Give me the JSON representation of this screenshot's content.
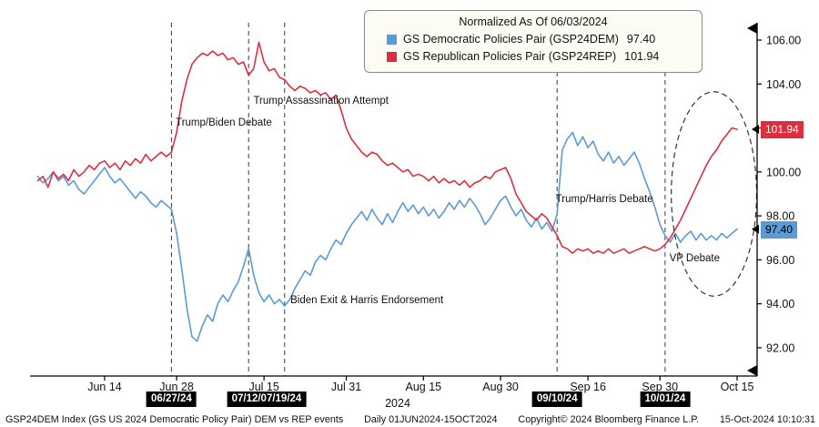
{
  "chart_data": {
    "type": "line",
    "title": "Normalized As Of 06/03/2024",
    "x_unit": "days since 01 Jun 2024",
    "x_range_days": [
      0,
      136
    ],
    "ylim": [
      91.0,
      107.0
    ],
    "grid": false,
    "legend_position": "top-center",
    "year_label": "2024",
    "y_ticks": [
      {
        "label": "92.00",
        "value": 92
      },
      {
        "label": "94.00",
        "value": 94
      },
      {
        "label": "96.00",
        "value": 96
      },
      {
        "label": "98.00",
        "value": 98
      },
      {
        "label": "100.00",
        "value": 100
      },
      {
        "label": "102.00",
        "value": 102
      },
      {
        "label": "104.00",
        "value": 104
      },
      {
        "label": "106.00",
        "value": 106
      }
    ],
    "x_ticks": [
      {
        "label": "Jun 14",
        "day": 13
      },
      {
        "label": "Jun 28",
        "day": 27
      },
      {
        "label": "Jul 15",
        "day": 44
      },
      {
        "label": "Jul 31",
        "day": 60
      },
      {
        "label": "Aug 15",
        "day": 75
      },
      {
        "label": "Aug 30",
        "day": 90
      },
      {
        "label": "Sep 16",
        "day": 107
      },
      {
        "label": "Sep 30",
        "day": 121
      },
      {
        "label": "Oct 15",
        "day": 136
      }
    ],
    "series": [
      {
        "name": "GS Democratic Policies Pair (GSP24DEM)",
        "ticker": "GSP24DEM",
        "color": "#5a9ad5",
        "last_value": "97.40",
        "points": [
          [
            0,
            99.8
          ],
          [
            1,
            99.5
          ],
          [
            2,
            99.7
          ],
          [
            3,
            100.0
          ],
          [
            4,
            99.6
          ],
          [
            5,
            99.8
          ],
          [
            6,
            99.4
          ],
          [
            7,
            99.6
          ],
          [
            8,
            99.2
          ],
          [
            9,
            99.0
          ],
          [
            10,
            99.3
          ],
          [
            11,
            99.6
          ],
          [
            12,
            99.9
          ],
          [
            13,
            100.2
          ],
          [
            14,
            99.8
          ],
          [
            15,
            99.5
          ],
          [
            16,
            99.7
          ],
          [
            17,
            99.4
          ],
          [
            18,
            99.1
          ],
          [
            19,
            98.8
          ],
          [
            20,
            99.1
          ],
          [
            21,
            98.9
          ],
          [
            22,
            98.6
          ],
          [
            23,
            98.4
          ],
          [
            24,
            98.7
          ],
          [
            25,
            98.5
          ],
          [
            26,
            98.3
          ],
          [
            27,
            97.2
          ],
          [
            28,
            95.6
          ],
          [
            29,
            93.8
          ],
          [
            30,
            92.5
          ],
          [
            31,
            92.3
          ],
          [
            32,
            93.0
          ],
          [
            33,
            93.5
          ],
          [
            34,
            93.2
          ],
          [
            35,
            94.0
          ],
          [
            36,
            94.4
          ],
          [
            37,
            94.1
          ],
          [
            38,
            94.6
          ],
          [
            39,
            95.0
          ],
          [
            40,
            95.7
          ],
          [
            41,
            96.5
          ],
          [
            42,
            95.3
          ],
          [
            43,
            94.5
          ],
          [
            44,
            94.1
          ],
          [
            45,
            94.4
          ],
          [
            46,
            94.0
          ],
          [
            47,
            94.2
          ],
          [
            48,
            93.9
          ],
          [
            49,
            94.2
          ],
          [
            50,
            94.7
          ],
          [
            51,
            95.1
          ],
          [
            52,
            95.5
          ],
          [
            53,
            95.3
          ],
          [
            54,
            95.9
          ],
          [
            55,
            96.2
          ],
          [
            56,
            96.0
          ],
          [
            57,
            96.5
          ],
          [
            58,
            96.9
          ],
          [
            59,
            96.7
          ],
          [
            60,
            97.2
          ],
          [
            61,
            97.6
          ],
          [
            62,
            97.9
          ],
          [
            63,
            98.2
          ],
          [
            64,
            97.8
          ],
          [
            65,
            98.3
          ],
          [
            66,
            97.9
          ],
          [
            67,
            97.6
          ],
          [
            68,
            98.1
          ],
          [
            69,
            97.7
          ],
          [
            70,
            98.2
          ],
          [
            71,
            98.6
          ],
          [
            72,
            98.2
          ],
          [
            73,
            98.5
          ],
          [
            74,
            98.1
          ],
          [
            75,
            98.4
          ],
          [
            76,
            98.0
          ],
          [
            77,
            98.3
          ],
          [
            78,
            97.9
          ],
          [
            79,
            98.2
          ],
          [
            80,
            98.6
          ],
          [
            81,
            98.3
          ],
          [
            82,
            98.7
          ],
          [
            83,
            98.4
          ],
          [
            84,
            98.8
          ],
          [
            85,
            98.5
          ],
          [
            86,
            98.1
          ],
          [
            87,
            97.6
          ],
          [
            88,
            97.9
          ],
          [
            89,
            98.3
          ],
          [
            90,
            98.7
          ],
          [
            91,
            98.9
          ],
          [
            92,
            98.4
          ],
          [
            93,
            98.0
          ],
          [
            94,
            98.3
          ],
          [
            95,
            97.8
          ],
          [
            96,
            97.5
          ],
          [
            97,
            97.9
          ],
          [
            98,
            97.4
          ],
          [
            99,
            97.7
          ],
          [
            100,
            97.3
          ],
          [
            101,
            98.1
          ],
          [
            102,
            101.0
          ],
          [
            103,
            101.5
          ],
          [
            104,
            101.8
          ],
          [
            105,
            101.2
          ],
          [
            106,
            101.6
          ],
          [
            107,
            101.1
          ],
          [
            108,
            101.4
          ],
          [
            109,
            100.8
          ],
          [
            110,
            100.5
          ],
          [
            111,
            100.9
          ],
          [
            112,
            100.4
          ],
          [
            113,
            100.7
          ],
          [
            114,
            100.3
          ],
          [
            115,
            100.6
          ],
          [
            116,
            100.9
          ],
          [
            117,
            100.4
          ],
          [
            118,
            99.7
          ],
          [
            119,
            99.1
          ],
          [
            120,
            98.4
          ],
          [
            121,
            97.6
          ],
          [
            122,
            97.1
          ],
          [
            123,
            96.8
          ],
          [
            124,
            97.2
          ],
          [
            125,
            96.8
          ],
          [
            126,
            97.1
          ],
          [
            127,
            97.3
          ],
          [
            128,
            96.9
          ],
          [
            129,
            97.2
          ],
          [
            130,
            96.9
          ],
          [
            131,
            97.1
          ],
          [
            132,
            96.9
          ],
          [
            133,
            97.2
          ],
          [
            134,
            97.0
          ],
          [
            135,
            97.2
          ],
          [
            136,
            97.4
          ]
        ]
      },
      {
        "name": "GS Republican Policies Pair (GSP24REP)",
        "ticker": "GSP24REP",
        "color": "#dd2e3e",
        "last_value": "101.94",
        "points": [
          [
            0,
            99.6
          ],
          [
            1,
            99.8
          ],
          [
            2,
            99.3
          ],
          [
            3,
            100.0
          ],
          [
            4,
            99.7
          ],
          [
            5,
            99.9
          ],
          [
            6,
            99.6
          ],
          [
            7,
            100.1
          ],
          [
            8,
            99.8
          ],
          [
            9,
            100.0
          ],
          [
            10,
            100.3
          ],
          [
            11,
            100.1
          ],
          [
            12,
            100.4
          ],
          [
            13,
            100.5
          ],
          [
            14,
            100.2
          ],
          [
            15,
            100.4
          ],
          [
            16,
            100.1
          ],
          [
            17,
            100.5
          ],
          [
            18,
            100.3
          ],
          [
            19,
            100.6
          ],
          [
            20,
            100.4
          ],
          [
            21,
            100.8
          ],
          [
            22,
            100.5
          ],
          [
            23,
            100.7
          ],
          [
            24,
            100.9
          ],
          [
            25,
            100.7
          ],
          [
            26,
            100.9
          ],
          [
            27,
            101.8
          ],
          [
            28,
            103.2
          ],
          [
            29,
            104.2
          ],
          [
            30,
            104.9
          ],
          [
            31,
            105.2
          ],
          [
            32,
            105.4
          ],
          [
            33,
            105.3
          ],
          [
            34,
            105.5
          ],
          [
            35,
            105.3
          ],
          [
            36,
            105.4
          ],
          [
            37,
            105.1
          ],
          [
            38,
            105.2
          ],
          [
            39,
            104.9
          ],
          [
            40,
            105.0
          ],
          [
            41,
            104.4
          ],
          [
            42,
            104.7
          ],
          [
            43,
            105.9
          ],
          [
            44,
            105.0
          ],
          [
            45,
            104.6
          ],
          [
            46,
            104.7
          ],
          [
            47,
            104.3
          ],
          [
            48,
            104.2
          ],
          [
            49,
            103.9
          ],
          [
            50,
            103.7
          ],
          [
            51,
            103.9
          ],
          [
            52,
            103.8
          ],
          [
            53,
            103.6
          ],
          [
            54,
            103.7
          ],
          [
            55,
            103.5
          ],
          [
            56,
            103.6
          ],
          [
            57,
            103.3
          ],
          [
            58,
            103.5
          ],
          [
            59,
            102.8
          ],
          [
            60,
            102.0
          ],
          [
            61,
            101.5
          ],
          [
            62,
            101.2
          ],
          [
            63,
            100.9
          ],
          [
            64,
            100.7
          ],
          [
            65,
            100.9
          ],
          [
            66,
            100.8
          ],
          [
            67,
            100.5
          ],
          [
            68,
            100.3
          ],
          [
            69,
            100.4
          ],
          [
            70,
            100.2
          ],
          [
            71,
            100.0
          ],
          [
            72,
            100.1
          ],
          [
            73,
            99.8
          ],
          [
            74,
            99.9
          ],
          [
            75,
            99.8
          ],
          [
            76,
            99.6
          ],
          [
            77,
            99.8
          ],
          [
            78,
            99.5
          ],
          [
            79,
            99.7
          ],
          [
            80,
            99.5
          ],
          [
            81,
            99.6
          ],
          [
            82,
            99.4
          ],
          [
            83,
            99.6
          ],
          [
            84,
            99.3
          ],
          [
            85,
            99.5
          ],
          [
            86,
            99.6
          ],
          [
            87,
            99.8
          ],
          [
            88,
            99.7
          ],
          [
            89,
            100.0
          ],
          [
            90,
            100.1
          ],
          [
            91,
            100.2
          ],
          [
            92,
            99.7
          ],
          [
            93,
            99.0
          ],
          [
            94,
            98.6
          ],
          [
            95,
            98.2
          ],
          [
            96,
            98.0
          ],
          [
            97,
            97.8
          ],
          [
            98,
            98.1
          ],
          [
            99,
            97.9
          ],
          [
            100,
            97.5
          ],
          [
            101,
            97.1
          ],
          [
            102,
            96.6
          ],
          [
            103,
            96.5
          ],
          [
            104,
            96.3
          ],
          [
            105,
            96.5
          ],
          [
            106,
            96.4
          ],
          [
            107,
            96.5
          ],
          [
            108,
            96.3
          ],
          [
            109,
            96.4
          ],
          [
            110,
            96.3
          ],
          [
            111,
            96.5
          ],
          [
            112,
            96.3
          ],
          [
            113,
            96.4
          ],
          [
            114,
            96.5
          ],
          [
            115,
            96.3
          ],
          [
            116,
            96.4
          ],
          [
            117,
            96.5
          ],
          [
            118,
            96.6
          ],
          [
            119,
            96.5
          ],
          [
            120,
            96.4
          ],
          [
            121,
            96.5
          ],
          [
            122,
            96.7
          ],
          [
            123,
            97.0
          ],
          [
            124,
            97.4
          ],
          [
            125,
            97.8
          ],
          [
            126,
            98.3
          ],
          [
            127,
            98.8
          ],
          [
            128,
            99.3
          ],
          [
            129,
            99.8
          ],
          [
            130,
            100.3
          ],
          [
            131,
            100.7
          ],
          [
            132,
            101.0
          ],
          [
            133,
            101.4
          ],
          [
            134,
            101.7
          ],
          [
            135,
            102.0
          ],
          [
            136,
            101.94
          ]
        ]
      }
    ],
    "event_lines_days": [
      26,
      41,
      48,
      101,
      122
    ],
    "annotations": [
      {
        "text": "Trump/Biden Debate",
        "day": 26.3,
        "value": 102.2
      },
      {
        "text": "Trump Assassination Attempt",
        "day": 41.4,
        "value": 103.2
      },
      {
        "text": "Biden Exit & Harris Endorsement",
        "day": 48.6,
        "value": 94.1
      },
      {
        "text": "Trump/Harris Debate",
        "day": 100.2,
        "value": 98.7
      },
      {
        "text": "VP Debate",
        "day": 122.3,
        "value": 96.0
      }
    ],
    "date_badges": [
      {
        "label": "06/27/24",
        "day": 26
      },
      {
        "label": "07/12/07/19/24",
        "day": 44.5
      },
      {
        "label": "09/10/24",
        "day": 101
      },
      {
        "label": "10/01/24",
        "day": 122
      }
    ],
    "highlight_ellipse": {
      "center_day": 131.5,
      "center_value": 99.0,
      "rx_days": 8.3,
      "ry_values": 4.65
    }
  },
  "legend": {
    "title": "Normalized As Of 06/03/2024",
    "items": [
      {
        "label": "GS Democratic Policies Pair (GSP24DEM)",
        "value": "97.40"
      },
      {
        "label": "GS Republican Policies Pair (GSP24REP)",
        "value": "101.94"
      }
    ]
  },
  "price_labels": [
    {
      "text": "101.94",
      "value": 101.94,
      "bg": "#dd2e3e",
      "fg": "#ffffff"
    },
    {
      "text": "97.40",
      "value": 97.4,
      "bg": "#5a9ad5",
      "fg": "#000000"
    }
  ],
  "footer": {
    "parts": [
      "GSP24DEM Index (GS US 2024 Democratic Policy Pair) DEM vs REP events",
      "Daily 01JUN2024-15OCT2024",
      "Copyright© 2024 Bloomberg Finance L.P.",
      "15-Oct-2024 10:10:31"
    ]
  }
}
